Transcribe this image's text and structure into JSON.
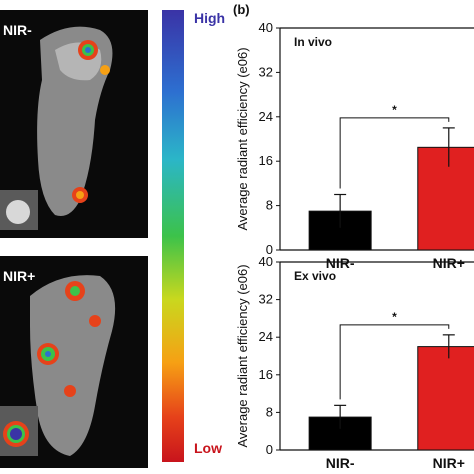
{
  "left_panel": {
    "top_label": "NIR-",
    "bottom_label": "NIR+",
    "colorbar_high": "High",
    "colorbar_low": "Low"
  },
  "panel_letter": "(b)",
  "chart_data": [
    {
      "type": "bar",
      "panel_text": "In vivo",
      "categories": [
        "NIR-",
        "NIR+"
      ],
      "values": [
        7,
        18.5
      ],
      "errors": [
        3,
        3.5
      ],
      "colors": [
        "#000000",
        "#e02020"
      ],
      "ylabel": "Average radiant efficiency (e06)",
      "ylim": [
        0,
        40
      ],
      "yticks": [
        0,
        8,
        16,
        24,
        32,
        40
      ],
      "significance": "*"
    },
    {
      "type": "bar",
      "panel_text": "Ex vivo",
      "categories": [
        "NIR-",
        "NIR+"
      ],
      "values": [
        7,
        22
      ],
      "errors": [
        2.5,
        2.5
      ],
      "colors": [
        "#000000",
        "#e02020"
      ],
      "ylabel": "Average radiant efficiency (e06)",
      "ylim": [
        0,
        40
      ],
      "yticks": [
        0,
        8,
        16,
        24,
        32,
        40
      ],
      "significance": "*"
    }
  ]
}
